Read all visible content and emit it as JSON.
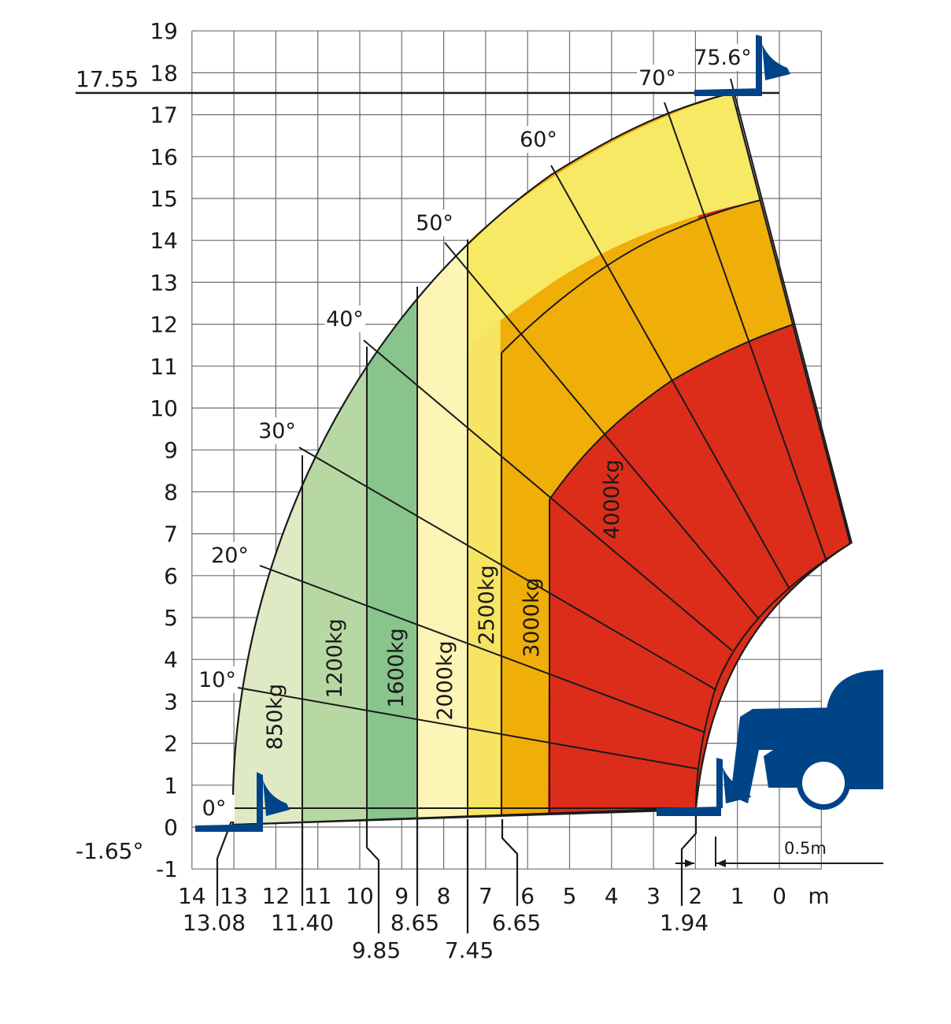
{
  "chart_data": {
    "type": "area",
    "x_axis": {
      "range": [
        14,
        -1
      ],
      "ticks": [
        "14",
        "13",
        "12",
        "11",
        "10",
        "9",
        "8",
        "7",
        "6",
        "5",
        "4",
        "3",
        "2",
        "1",
        "0"
      ],
      "unit_label": "m"
    },
    "y_axis": {
      "range": [
        -1,
        19
      ],
      "ticks": [
        "19",
        "18",
        "17",
        "16",
        "15",
        "14",
        "13",
        "12",
        "11",
        "10",
        "9",
        "8",
        "7",
        "6",
        "5",
        "4",
        "3",
        "2",
        "1",
        "0",
        "-1"
      ]
    },
    "grid": true,
    "max_height": {
      "value": 17.55,
      "label": "17.55"
    },
    "min_angle_label": "-1.65°",
    "zones": [
      {
        "load": "850kg",
        "color": "#dfe9c3",
        "boundary_reach": 13.08,
        "boundary_label": "13.08"
      },
      {
        "load": "1200kg",
        "color": "#b8d8a3",
        "boundary_reach": 11.4,
        "boundary_label": "11.40"
      },
      {
        "load": "1600kg",
        "color": "#88c48b",
        "boundary_reach": 9.85,
        "boundary_label": "9.85"
      },
      {
        "load": "2000kg",
        "color": "#fdf5b5",
        "boundary_reach": 8.65,
        "boundary_label": "8.65"
      },
      {
        "load": "2500kg",
        "color": "#f7e463",
        "boundary_reach": 7.45,
        "boundary_label": "7.45"
      },
      {
        "load": "3000kg",
        "color": "#f0ae08",
        "boundary_reach": 6.65,
        "boundary_label": "6.65"
      },
      {
        "load": "4000kg",
        "color": "#dc2d1a",
        "boundary_reach": 1.94,
        "boundary_label": "1.94"
      }
    ],
    "angles": [
      {
        "label": "0°",
        "deg": 0
      },
      {
        "label": "10°",
        "deg": 10
      },
      {
        "label": "20°",
        "deg": 20
      },
      {
        "label": "30°",
        "deg": 30
      },
      {
        "label": "40°",
        "deg": 40
      },
      {
        "label": "50°",
        "deg": 50
      },
      {
        "label": "60°",
        "deg": 60
      },
      {
        "label": "70°",
        "deg": 70
      },
      {
        "label": "75.6°",
        "deg": 75.6
      }
    ],
    "fork_clearance": {
      "value": 0.5,
      "label": "0.5m"
    }
  },
  "colors": {
    "machine": "#004488",
    "yellow_outer": "#f8e965",
    "orange": "#f0ae08",
    "red": "#dc2d1a"
  }
}
